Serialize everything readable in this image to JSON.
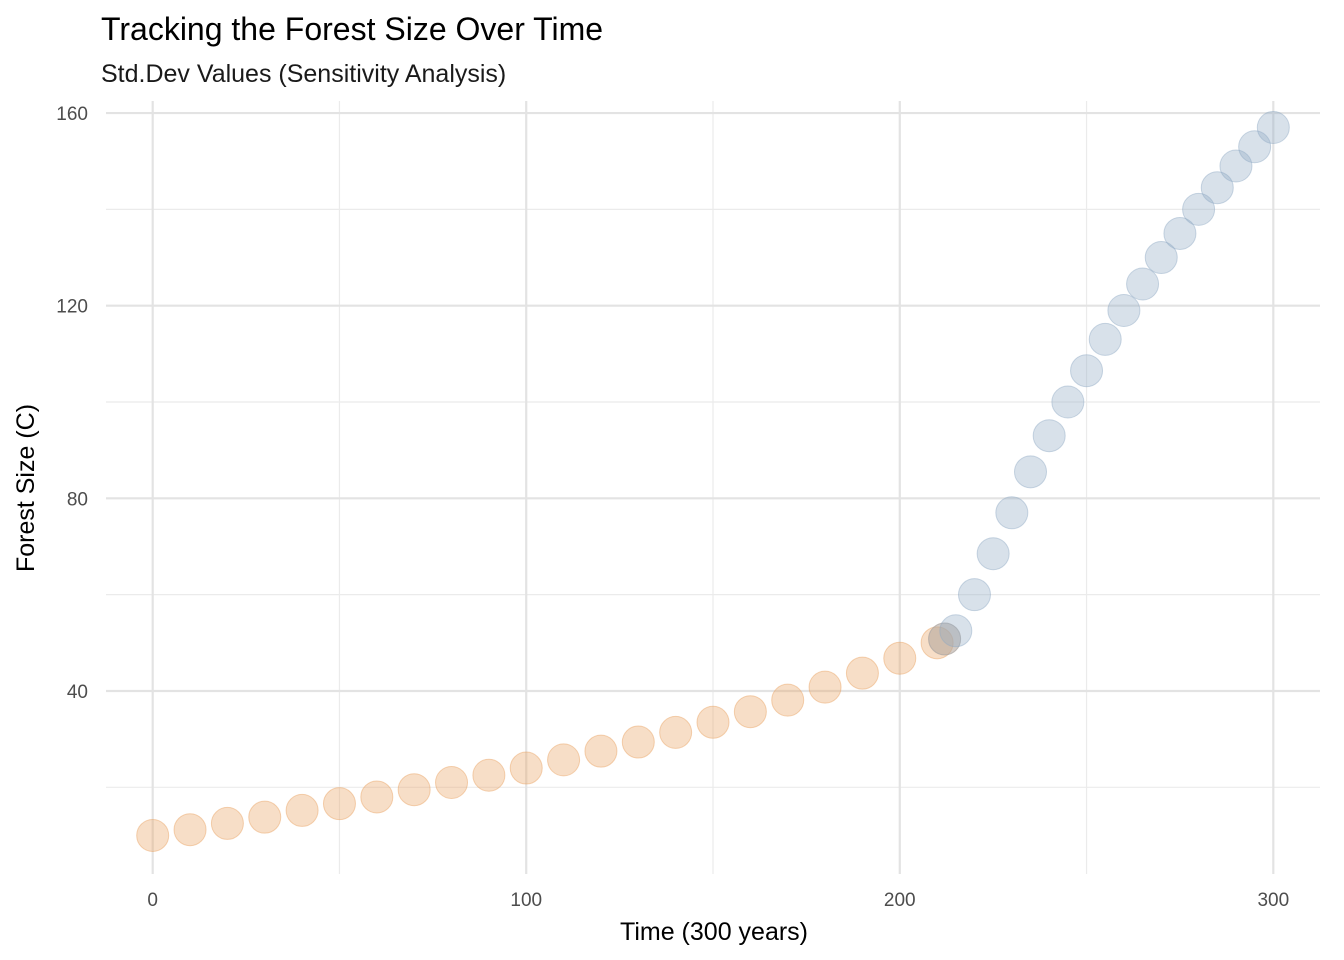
{
  "chart_data": {
    "type": "scatter",
    "title": "Tracking the Forest Size Over Time",
    "subtitle": "Std.Dev Values (Sensitivity Analysis)",
    "xlabel": "Time (300 years)",
    "ylabel": "Forest Size (C)",
    "xlim": [
      -12.5,
      312.5
    ],
    "ylim": [
      2.0,
      162.5
    ],
    "x_ticks": [
      0,
      100,
      200,
      300
    ],
    "x_tick_labels": [
      "0",
      "100",
      "200",
      "300"
    ],
    "y_ticks": [
      40,
      80,
      120,
      160
    ],
    "y_tick_labels": [
      "40",
      "80",
      "120",
      "160"
    ],
    "x_minor_ticks": [
      50,
      150,
      250
    ],
    "y_minor_ticks": [
      20,
      60,
      100,
      140
    ],
    "grid": true,
    "legend": "none",
    "series": [
      {
        "color": "#E8A05E",
        "x": [
          0,
          10,
          20,
          30,
          40,
          50,
          60,
          70,
          80,
          90,
          100,
          110,
          120,
          130,
          140,
          150,
          160,
          170,
          180,
          190,
          200,
          210,
          212
        ],
        "values": [
          10.0,
          11.2,
          12.5,
          13.8,
          15.2,
          16.6,
          18.0,
          19.5,
          21.0,
          22.5,
          24.0,
          25.7,
          27.5,
          29.4,
          31.4,
          33.5,
          35.7,
          38.1,
          40.8,
          43.7,
          46.8,
          50.0,
          50.8
        ]
      },
      {
        "color": "#8EA8C3",
        "x": [
          212,
          215,
          220,
          225,
          230,
          235,
          240,
          245,
          250,
          255,
          260,
          265,
          270,
          275,
          280,
          285,
          290,
          295,
          300
        ],
        "values": [
          50.8,
          52.5,
          60.0,
          68.5,
          77.0,
          85.5,
          93.0,
          100.0,
          106.5,
          113.0,
          119.0,
          124.5,
          130.0,
          135.0,
          140.0,
          144.5,
          149.0,
          153.0,
          157.0
        ]
      }
    ]
  }
}
